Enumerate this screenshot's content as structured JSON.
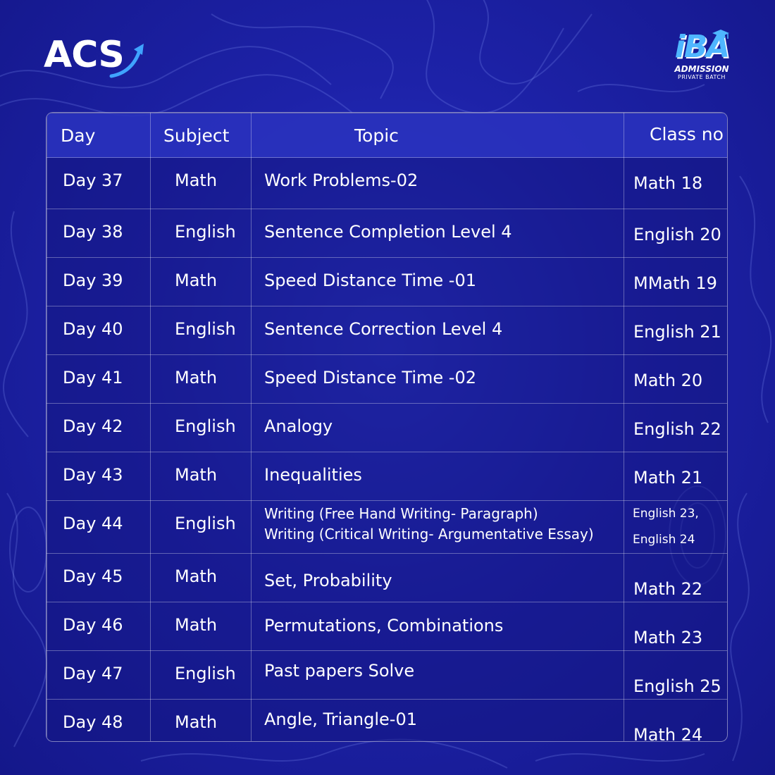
{
  "brand": {
    "acs_logo_text": "ACS",
    "iba_logo_text": "iBA",
    "iba_line1": "ADMISSION",
    "iba_line2": "PRIVATE BATCH"
  },
  "colors": {
    "background": "#1d22a8",
    "header_row": "#2d37c8",
    "iba_blue": "#4fb6ff"
  },
  "icons": [
    "arrow-up-right-icon",
    "graduation-cap-icon"
  ],
  "table": {
    "headers": {
      "day": "Day",
      "subject": "Subject",
      "topic": "Topic",
      "class_no": "Class no"
    },
    "rows": [
      {
        "day": "Day 37",
        "subject": "Math",
        "topic": "Work Problems-02",
        "class_no": "Math  18"
      },
      {
        "day": "Day 38",
        "subject": "English",
        "topic": "Sentence Completion Level 4",
        "class_no": "English 20"
      },
      {
        "day": "Day 39",
        "subject": "Math",
        "topic": "Speed Distance Time -01",
        "class_no": "MMath  19"
      },
      {
        "day": "Day 40",
        "subject": "English",
        "topic": "Sentence Correction Level 4",
        "class_no": "English 21"
      },
      {
        "day": "Day 41",
        "subject": "Math",
        "topic": "Speed Distance Time -02",
        "class_no": "Math  20"
      },
      {
        "day": "Day 42",
        "subject": "English",
        "topic": "Analogy",
        "class_no": "English 22"
      },
      {
        "day": "Day 43",
        "subject": "Math",
        "topic": "Inequalities",
        "class_no": "Math  21"
      },
      {
        "day": "Day 44",
        "subject": "English",
        "topic_line1": "Writing (Free Hand Writing- Paragraph)",
        "topic_line2": "Writing (Critical Writing- Argumentative Essay)",
        "class_no_line1": "English 23,",
        "class_no_line2": "English 24"
      },
      {
        "day": "Day 45",
        "subject": "Math",
        "topic": "Set, Probability",
        "class_no": "Math  22"
      },
      {
        "day": "Day 46",
        "subject": "Math",
        "topic": "Permutations, Combinations",
        "class_no": "Math  23"
      },
      {
        "day": "Day 47",
        "subject": "English",
        "topic": "Past papers Solve",
        "class_no": "English 25"
      },
      {
        "day": "Day 48",
        "subject": "Math",
        "topic": "Angle, Triangle-01",
        "class_no": "Math  24"
      }
    ]
  }
}
